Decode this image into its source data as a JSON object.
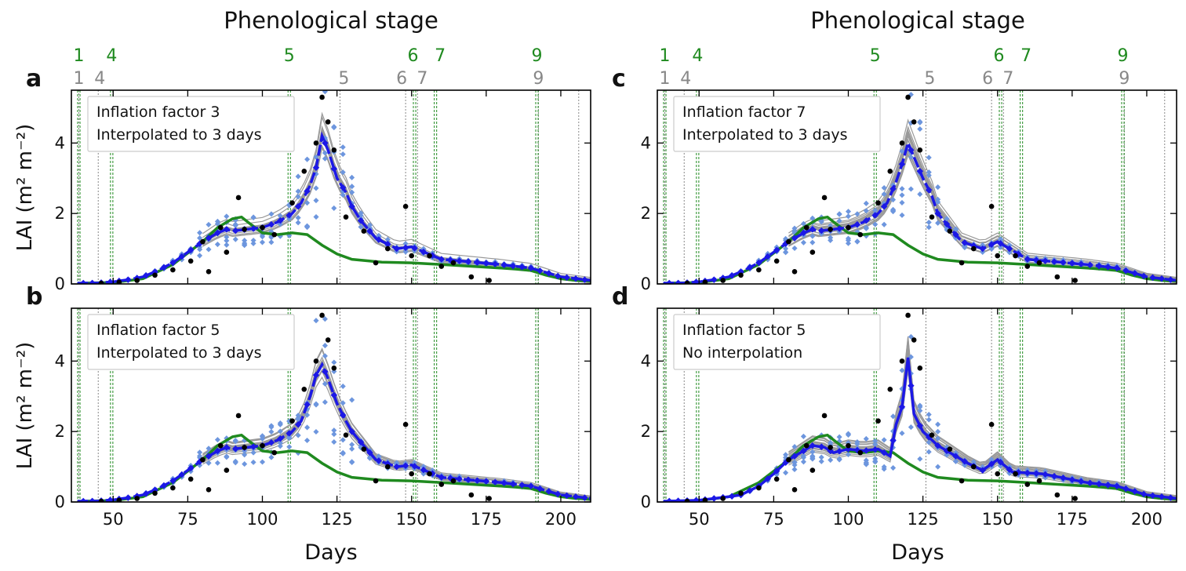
{
  "figure": {
    "column_title": "Phenological stage",
    "xlabel": "Days",
    "ylabel": "LAI (m² m⁻²)",
    "colors": {
      "observed": "#000000",
      "ensemble_members": "#999999",
      "ensemble_points": "#6d96de",
      "ensemble_mean": "#1c18e6",
      "open_loop": "#1f8a1f",
      "stage_simulated": "#1f8a1f",
      "stage_observed": "#888888"
    },
    "stage_lines": {
      "simulated": [
        {
          "stage": "1",
          "day": 38.5
        },
        {
          "stage": "4",
          "day": 49.5
        },
        {
          "stage": "5",
          "day": 109
        },
        {
          "stage": "6",
          "day": 151
        },
        {
          "stage": "7",
          "day": 158
        },
        {
          "stage": "9",
          "day": 192
        }
      ],
      "observed": [
        {
          "stage": "1",
          "day": 38.5
        },
        {
          "stage": "4",
          "day": 45
        },
        {
          "stage": "5",
          "day": 126
        },
        {
          "stage": "6",
          "day": 148
        },
        {
          "stage": "7",
          "day": 152
        },
        {
          "stage": "9",
          "day": 192.5
        },
        {
          "stage": "",
          "day": 206
        }
      ]
    }
  },
  "chart_data": [
    {
      "panel": "a",
      "type": "line",
      "title": "Inflation factor 3",
      "subtitle": "Interpolated to 3 days",
      "xlim": [
        36,
        210
      ],
      "ylim": [
        0,
        5.5
      ],
      "xticks": [
        50,
        75,
        100,
        125,
        150,
        175,
        200
      ],
      "yticks": [
        0,
        2,
        4
      ],
      "observed": {
        "x": [
          46,
          52,
          58,
          64,
          70,
          76,
          80,
          82,
          86,
          88,
          92,
          94,
          100,
          104,
          110,
          114,
          118,
          120,
          122,
          124,
          128,
          134,
          138,
          142,
          148,
          150,
          156,
          160,
          164,
          170,
          176
        ],
        "y": [
          0.02,
          0.05,
          0.1,
          0.25,
          0.4,
          0.65,
          1.2,
          0.35,
          1.6,
          0.9,
          2.45,
          1.55,
          1.6,
          1.4,
          2.3,
          3.2,
          4.0,
          5.3,
          4.6,
          3.8,
          1.9,
          1.5,
          0.6,
          1.0,
          2.2,
          0.8,
          0.8,
          0.5,
          0.6,
          0.2,
          0.1
        ]
      },
      "ensemble_mean": {
        "x": [
          38,
          45,
          50,
          55,
          60,
          65,
          70,
          75,
          80,
          85,
          88,
          90,
          95,
          100,
          105,
          110,
          113,
          116,
          118,
          120,
          122,
          125,
          128,
          130,
          133,
          138,
          145,
          150,
          160,
          180,
          190,
          200,
          210
        ],
        "y": [
          0.02,
          0.03,
          0.06,
          0.12,
          0.2,
          0.38,
          0.6,
          0.9,
          1.2,
          1.45,
          1.55,
          1.5,
          1.55,
          1.6,
          1.75,
          2.0,
          2.3,
          2.8,
          3.3,
          4.2,
          3.8,
          3.0,
          2.6,
          2.2,
          1.8,
          1.3,
          1.0,
          1.05,
          0.7,
          0.55,
          0.45,
          0.2,
          0.1
        ]
      },
      "open_loop": {
        "x": [
          38,
          50,
          60,
          70,
          80,
          85,
          90,
          93,
          96,
          100,
          105,
          110,
          115,
          120,
          125,
          130,
          140,
          150,
          160,
          170,
          180,
          185,
          190,
          195,
          200,
          205,
          210
        ],
        "y": [
          0.02,
          0.04,
          0.15,
          0.55,
          1.2,
          1.6,
          1.85,
          1.9,
          1.7,
          1.45,
          1.4,
          1.45,
          1.4,
          1.1,
          0.85,
          0.7,
          0.62,
          0.6,
          0.55,
          0.5,
          0.45,
          0.42,
          0.38,
          0.25,
          0.15,
          0.1,
          0.08
        ]
      }
    },
    {
      "panel": "b",
      "type": "line",
      "title": "Inflation factor 5",
      "subtitle": "Interpolated to 3 days",
      "xlim": [
        36,
        210
      ],
      "ylim": [
        0,
        5.5
      ],
      "xticks": [
        50,
        75,
        100,
        125,
        150,
        175,
        200
      ],
      "yticks": [
        0,
        2,
        4
      ],
      "observed": {
        "x": [
          46,
          52,
          58,
          64,
          70,
          76,
          80,
          82,
          86,
          88,
          92,
          94,
          100,
          104,
          110,
          114,
          118,
          120,
          122,
          124,
          128,
          134,
          138,
          142,
          148,
          150,
          156,
          160,
          164,
          170,
          176
        ],
        "y": [
          0.02,
          0.05,
          0.1,
          0.25,
          0.4,
          0.65,
          1.2,
          0.35,
          1.6,
          0.9,
          2.45,
          1.55,
          1.6,
          1.4,
          2.3,
          3.2,
          4.0,
          5.3,
          4.6,
          3.8,
          1.9,
          1.5,
          0.6,
          1.0,
          2.2,
          0.8,
          0.8,
          0.5,
          0.6,
          0.2,
          0.1
        ]
      },
      "ensemble_mean": {
        "x": [
          38,
          45,
          50,
          55,
          60,
          65,
          70,
          75,
          80,
          85,
          88,
          90,
          95,
          100,
          105,
          110,
          113,
          116,
          118,
          120,
          122,
          125,
          128,
          130,
          133,
          138,
          145,
          150,
          160,
          180,
          190,
          200,
          210
        ],
        "y": [
          0.02,
          0.03,
          0.06,
          0.12,
          0.2,
          0.38,
          0.6,
          0.9,
          1.2,
          1.45,
          1.55,
          1.5,
          1.55,
          1.6,
          1.75,
          2.0,
          2.3,
          3.0,
          3.6,
          3.9,
          3.5,
          2.8,
          2.3,
          2.0,
          1.7,
          1.2,
          1.0,
          1.05,
          0.7,
          0.55,
          0.45,
          0.2,
          0.1
        ]
      },
      "open_loop": {
        "x": [
          38,
          50,
          60,
          70,
          80,
          85,
          90,
          93,
          96,
          100,
          105,
          110,
          115,
          120,
          125,
          130,
          140,
          150,
          160,
          170,
          180,
          185,
          190,
          195,
          200,
          205,
          210
        ],
        "y": [
          0.02,
          0.04,
          0.15,
          0.55,
          1.2,
          1.6,
          1.85,
          1.9,
          1.7,
          1.45,
          1.4,
          1.45,
          1.4,
          1.1,
          0.85,
          0.7,
          0.62,
          0.6,
          0.55,
          0.5,
          0.45,
          0.42,
          0.38,
          0.25,
          0.15,
          0.1,
          0.08
        ]
      }
    },
    {
      "panel": "c",
      "type": "line",
      "title": "Inflation factor 7",
      "subtitle": "Interpolated to 3 days",
      "xlim": [
        36,
        210
      ],
      "ylim": [
        0,
        5.5
      ],
      "xticks": [
        50,
        75,
        100,
        125,
        150,
        175,
        200
      ],
      "yticks": [
        0,
        2,
        4
      ],
      "observed": {
        "x": [
          46,
          52,
          58,
          64,
          70,
          76,
          80,
          82,
          86,
          88,
          92,
          94,
          100,
          104,
          110,
          114,
          118,
          120,
          122,
          124,
          128,
          134,
          138,
          142,
          148,
          150,
          156,
          160,
          164,
          170,
          176
        ],
        "y": [
          0.02,
          0.05,
          0.1,
          0.25,
          0.4,
          0.65,
          1.2,
          0.35,
          1.6,
          0.9,
          2.45,
          1.55,
          1.6,
          1.4,
          2.3,
          3.2,
          4.0,
          5.3,
          4.6,
          3.8,
          1.9,
          1.5,
          0.6,
          1.0,
          2.2,
          0.8,
          0.8,
          0.5,
          0.6,
          0.2,
          0.1
        ]
      },
      "ensemble_mean": {
        "x": [
          38,
          45,
          50,
          55,
          60,
          65,
          70,
          75,
          80,
          85,
          88,
          90,
          95,
          100,
          105,
          110,
          113,
          116,
          118,
          120,
          122,
          125,
          128,
          130,
          133,
          138,
          145,
          150,
          160,
          180,
          190,
          200,
          210
        ],
        "y": [
          0.02,
          0.03,
          0.06,
          0.12,
          0.2,
          0.38,
          0.6,
          0.9,
          1.2,
          1.45,
          1.55,
          1.5,
          1.55,
          1.6,
          1.75,
          2.0,
          2.3,
          2.9,
          3.4,
          4.0,
          3.6,
          3.0,
          2.5,
          2.0,
          1.7,
          1.2,
          1.0,
          1.2,
          0.7,
          0.55,
          0.45,
          0.2,
          0.1
        ]
      },
      "open_loop": {
        "x": [
          38,
          50,
          60,
          70,
          80,
          85,
          90,
          93,
          96,
          100,
          105,
          110,
          115,
          120,
          125,
          130,
          140,
          150,
          160,
          170,
          180,
          185,
          190,
          195,
          200,
          205,
          210
        ],
        "y": [
          0.02,
          0.04,
          0.15,
          0.55,
          1.2,
          1.6,
          1.85,
          1.9,
          1.7,
          1.45,
          1.4,
          1.45,
          1.4,
          1.1,
          0.85,
          0.7,
          0.62,
          0.6,
          0.55,
          0.5,
          0.45,
          0.42,
          0.38,
          0.25,
          0.15,
          0.1,
          0.08
        ]
      }
    },
    {
      "panel": "d",
      "type": "line",
      "title": "Inflation factor 5",
      "subtitle": "No interpolation",
      "xlim": [
        36,
        210
      ],
      "ylim": [
        0,
        5.5
      ],
      "xticks": [
        50,
        75,
        100,
        125,
        150,
        175,
        200
      ],
      "yticks": [
        0,
        2,
        4
      ],
      "observed": {
        "x": [
          46,
          52,
          58,
          64,
          70,
          76,
          80,
          82,
          86,
          88,
          92,
          94,
          100,
          104,
          110,
          114,
          118,
          120,
          122,
          124,
          128,
          134,
          138,
          142,
          148,
          150,
          156,
          160,
          164,
          170,
          176
        ],
        "y": [
          0.02,
          0.05,
          0.1,
          0.25,
          0.4,
          0.65,
          1.2,
          0.35,
          1.6,
          0.9,
          2.45,
          1.55,
          1.6,
          1.4,
          2.3,
          3.2,
          4.0,
          5.3,
          4.6,
          3.8,
          1.9,
          1.5,
          0.6,
          1.0,
          2.2,
          0.8,
          0.8,
          0.5,
          0.6,
          0.2,
          0.1
        ]
      },
      "ensemble_mean": {
        "x": [
          38,
          50,
          60,
          64,
          70,
          75,
          80,
          85,
          88,
          92,
          95,
          100,
          105,
          110,
          114,
          116,
          118,
          120,
          122,
          125,
          130,
          135,
          140,
          145,
          150,
          155,
          165,
          180,
          190,
          200,
          210
        ],
        "y": [
          0.02,
          0.05,
          0.15,
          0.2,
          0.45,
          0.8,
          1.2,
          1.45,
          1.6,
          1.55,
          1.4,
          1.5,
          1.45,
          1.5,
          1.3,
          2.2,
          2.7,
          4.1,
          2.5,
          2.0,
          1.6,
          1.35,
          1.1,
          0.9,
          1.2,
          0.85,
          0.8,
          0.55,
          0.45,
          0.2,
          0.1
        ]
      },
      "open_loop": {
        "x": [
          38,
          50,
          60,
          70,
          80,
          85,
          90,
          93,
          96,
          100,
          105,
          110,
          115,
          120,
          125,
          130,
          140,
          150,
          160,
          170,
          180,
          185,
          190,
          195,
          200,
          205,
          210
        ],
        "y": [
          0.02,
          0.04,
          0.15,
          0.55,
          1.2,
          1.6,
          1.85,
          1.9,
          1.7,
          1.45,
          1.4,
          1.45,
          1.4,
          1.1,
          0.85,
          0.7,
          0.62,
          0.6,
          0.55,
          0.5,
          0.45,
          0.42,
          0.38,
          0.25,
          0.15,
          0.1,
          0.08
        ]
      }
    }
  ]
}
